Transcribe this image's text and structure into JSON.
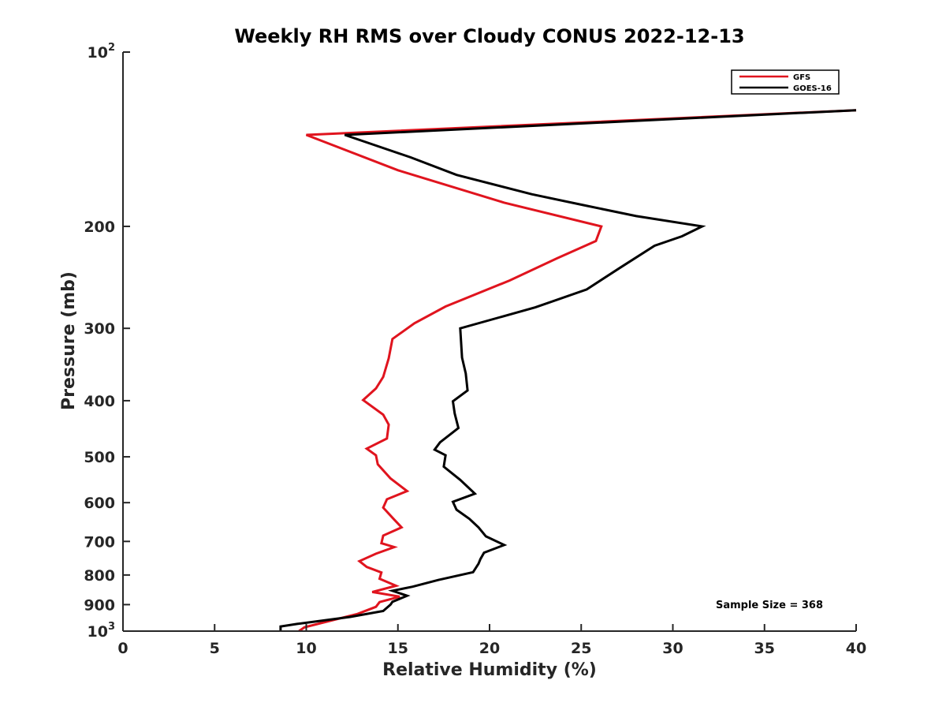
{
  "chart_data": {
    "type": "line",
    "title": "Weekly RH RMS over Cloudy CONUS 2022-12-13",
    "xlabel": "Relative Humidity (%)",
    "ylabel": "Pressure (mb)",
    "xlim": [
      0,
      40
    ],
    "ylim": [
      100,
      1000
    ],
    "y_scale": "log",
    "y_reversed": true,
    "grid": false,
    "x_ticks": [
      0,
      5,
      10,
      15,
      20,
      25,
      30,
      35,
      40
    ],
    "y_ticks": [
      {
        "value": 100,
        "label": "10",
        "exp": "2"
      },
      {
        "value": 200,
        "label": "200"
      },
      {
        "value": 300,
        "label": "300"
      },
      {
        "value": 400,
        "label": "400"
      },
      {
        "value": 500,
        "label": "500"
      },
      {
        "value": 600,
        "label": "600"
      },
      {
        "value": 700,
        "label": "700"
      },
      {
        "value": 800,
        "label": "800"
      },
      {
        "value": 900,
        "label": "900"
      },
      {
        "value": 1000,
        "label": "10",
        "exp": "3"
      }
    ],
    "legend_position": "top-right",
    "annotation": "Sample Size = 368",
    "series": [
      {
        "name": "GFS",
        "color": "#e0141e",
        "points": [
          [
            40.0,
            126
          ],
          [
            10.0,
            139
          ],
          [
            15.0,
            160
          ],
          [
            20.8,
            182
          ],
          [
            26.1,
            200
          ],
          [
            25.8,
            212
          ],
          [
            23.7,
            227
          ],
          [
            21.1,
            248
          ],
          [
            17.6,
            275
          ],
          [
            15.9,
            294
          ],
          [
            14.7,
            313
          ],
          [
            14.5,
            338
          ],
          [
            14.2,
            364
          ],
          [
            13.8,
            381
          ],
          [
            13.1,
            399
          ],
          [
            14.2,
            423
          ],
          [
            14.5,
            440
          ],
          [
            14.4,
            465
          ],
          [
            13.3,
            484
          ],
          [
            13.8,
            497
          ],
          [
            13.9,
            515
          ],
          [
            14.6,
            545
          ],
          [
            15.5,
            573
          ],
          [
            14.4,
            592
          ],
          [
            14.2,
            612
          ],
          [
            14.8,
            642
          ],
          [
            15.2,
            662
          ],
          [
            14.2,
            684
          ],
          [
            14.1,
            705
          ],
          [
            14.8,
            716
          ],
          [
            13.8,
            735
          ],
          [
            12.9,
            757
          ],
          [
            13.3,
            775
          ],
          [
            14.1,
            792
          ],
          [
            14.0,
            812
          ],
          [
            14.9,
            835
          ],
          [
            13.6,
            856
          ],
          [
            15.1,
            872
          ],
          [
            14.0,
            891
          ],
          [
            13.8,
            908
          ],
          [
            12.8,
            934
          ],
          [
            9.9,
            985
          ],
          [
            9.6,
            1000
          ]
        ]
      },
      {
        "name": "GOES-16",
        "color": "#000000",
        "points": [
          [
            40.0,
            126
          ],
          [
            12.1,
            139
          ],
          [
            15.7,
            152
          ],
          [
            18.2,
            163
          ],
          [
            22.3,
            176
          ],
          [
            25.2,
            184
          ],
          [
            28.0,
            192
          ],
          [
            31.6,
            200
          ],
          [
            30.5,
            208
          ],
          [
            29.0,
            216
          ],
          [
            27.1,
            236
          ],
          [
            25.3,
            257
          ],
          [
            22.5,
            276
          ],
          [
            18.4,
            300
          ],
          [
            18.5,
            337
          ],
          [
            18.7,
            359
          ],
          [
            18.8,
            384
          ],
          [
            18.0,
            401
          ],
          [
            18.1,
            421
          ],
          [
            18.3,
            446
          ],
          [
            17.3,
            472
          ],
          [
            17.0,
            486
          ],
          [
            17.6,
            497
          ],
          [
            17.5,
            520
          ],
          [
            18.4,
            548
          ],
          [
            19.2,
            579
          ],
          [
            18.0,
            598
          ],
          [
            18.2,
            617
          ],
          [
            18.9,
            640
          ],
          [
            19.4,
            662
          ],
          [
            19.8,
            686
          ],
          [
            20.8,
            710
          ],
          [
            19.7,
            732
          ],
          [
            19.5,
            751
          ],
          [
            19.4,
            765
          ],
          [
            19.1,
            791
          ],
          [
            17.2,
            816
          ],
          [
            15.8,
            838
          ],
          [
            14.7,
            852
          ],
          [
            15.5,
            869
          ],
          [
            14.7,
            890
          ],
          [
            14.6,
            900
          ],
          [
            14.2,
            923
          ],
          [
            12.4,
            945
          ],
          [
            9.5,
            972
          ],
          [
            8.6,
            982
          ],
          [
            8.6,
            1000
          ]
        ]
      }
    ]
  }
}
